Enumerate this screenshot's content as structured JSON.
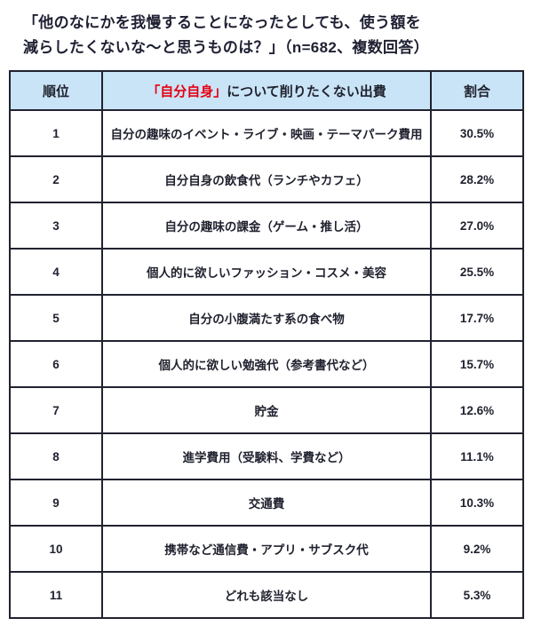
{
  "title": {
    "line1": "「他のなにかを我慢することになったとしても、使う額を",
    "line2": "減らしたくないな〜と思うものは？」（n=682、複数回答）"
  },
  "table": {
    "headers": {
      "rank": "順位",
      "item_red": "「自分自身」",
      "item_rest": "について削りたくない出費",
      "percent": "割合"
    },
    "rows": [
      {
        "rank": "1",
        "item": "自分の趣味のイベント・ライブ・映画・テーマパーク費用",
        "percent": "30.5%"
      },
      {
        "rank": "2",
        "item": "自分自身の飲食代（ランチやカフェ）",
        "percent": "28.2%"
      },
      {
        "rank": "3",
        "item": "自分の趣味の課金（ゲーム・推し活）",
        "percent": "27.0%"
      },
      {
        "rank": "4",
        "item": "個人的に欲しいファッション・コスメ・美容",
        "percent": "25.5%"
      },
      {
        "rank": "5",
        "item": "自分の小腹満たす系の食べ物",
        "percent": "17.7%"
      },
      {
        "rank": "6",
        "item": "個人的に欲しい勉強代（参考書代など）",
        "percent": "15.7%"
      },
      {
        "rank": "7",
        "item": "貯金",
        "percent": "12.6%"
      },
      {
        "rank": "8",
        "item": "進学費用（受験料、学費など）",
        "percent": "11.1%"
      },
      {
        "rank": "9",
        "item": "交通費",
        "percent": "10.3%"
      },
      {
        "rank": "10",
        "item": "携帯など通信費・アプリ・サブスク代",
        "percent": "9.2%"
      },
      {
        "rank": "11",
        "item": "どれも該当なし",
        "percent": "5.3%"
      }
    ]
  },
  "colors": {
    "header_bg": "#c9e4f6",
    "border": "#20222f",
    "text": "#20222f",
    "accent_red": "#e60012",
    "background": "#ffffff"
  },
  "chart_data": {
    "type": "table",
    "title": "「他のなにかを我慢することになったとしても、使う額を減らしたくないな〜と思うものは？」（n=682、複数回答）",
    "sample_size": 682,
    "multiple_answers": "複数回答",
    "columns": [
      "順位",
      "「自分自身」について削りたくない出費",
      "割合"
    ],
    "categories": [
      "自分の趣味のイベント・ライブ・映画・テーマパーク費用",
      "自分自身の飲食代（ランチやカフェ）",
      "自分の趣味の課金（ゲーム・推し活）",
      "個人的に欲しいファッション・コスメ・美容",
      "自分の小腹満たす系の食べ物",
      "個人的に欲しい勉強代（参考書代など）",
      "貯金",
      "進学費用（受験料、学費など）",
      "交通費",
      "携帯など通信費・アプリ・サブスク代",
      "どれも該当なし"
    ],
    "values": [
      30.5,
      28.2,
      27.0,
      25.5,
      17.7,
      15.7,
      12.6,
      11.1,
      10.3,
      9.2,
      5.3
    ],
    "value_unit": "%"
  }
}
